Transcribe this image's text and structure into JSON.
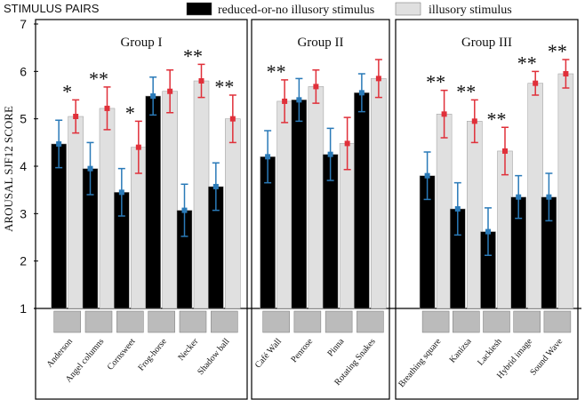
{
  "chart_data": {
    "type": "grouped-bar",
    "legend_title": "STIMULUS PAIRS",
    "y_label": "AROUSAL SJF12  SCORE",
    "ylim": [
      1,
      7
    ],
    "yticks": [
      1,
      2,
      3,
      4,
      5,
      6,
      7
    ],
    "series": [
      {
        "name": "reduced-or-no illusory stimulus",
        "color": "#000000",
        "error_color": "#2a7ab8"
      },
      {
        "name": "illusory stimulus",
        "color": "#e0e0e0",
        "error_color": "#e0303a"
      }
    ],
    "groups": [
      {
        "title": "Group I",
        "categories": [
          "Anderson",
          "Angel columns",
          "Cornsweet",
          "Frog-horse",
          "Necker",
          "Shadow ball"
        ],
        "values": [
          [
            4.47,
            3.95,
            3.45,
            5.48,
            3.07,
            3.57
          ],
          [
            5.05,
            5.22,
            4.4,
            5.58,
            5.8,
            5.0
          ]
        ],
        "errors": [
          [
            0.5,
            0.55,
            0.5,
            0.4,
            0.55,
            0.5
          ],
          [
            0.35,
            0.45,
            0.55,
            0.45,
            0.35,
            0.5
          ]
        ],
        "stars": [
          "*",
          "**",
          "*",
          null,
          "**",
          "**"
        ]
      },
      {
        "title": "Group II",
        "categories": [
          "Café Wall",
          "Penrose",
          "Pinna",
          "Rotating Snakes"
        ],
        "values": [
          [
            4.2,
            5.4,
            4.25,
            5.55
          ],
          [
            5.37,
            5.68,
            4.48,
            5.85
          ]
        ],
        "errors": [
          [
            0.55,
            0.45,
            0.55,
            0.4
          ],
          [
            0.45,
            0.35,
            0.55,
            0.4
          ]
        ],
        "stars": [
          "**",
          null,
          null,
          null
        ]
      },
      {
        "title": "Group III",
        "categories": [
          "Breathing square",
          "Kanizsa",
          "Lackiesh",
          "Hybrid image",
          "Sound Wave"
        ],
        "values": [
          [
            3.8,
            3.1,
            2.62,
            3.35,
            3.35
          ],
          [
            5.1,
            4.95,
            4.32,
            5.75,
            5.95
          ]
        ],
        "errors": [
          [
            0.5,
            0.55,
            0.5,
            0.45,
            0.5
          ],
          [
            0.5,
            0.45,
            0.5,
            0.25,
            0.3
          ]
        ],
        "stars": [
          "**",
          "**",
          "**",
          "**",
          "**"
        ]
      }
    ]
  }
}
